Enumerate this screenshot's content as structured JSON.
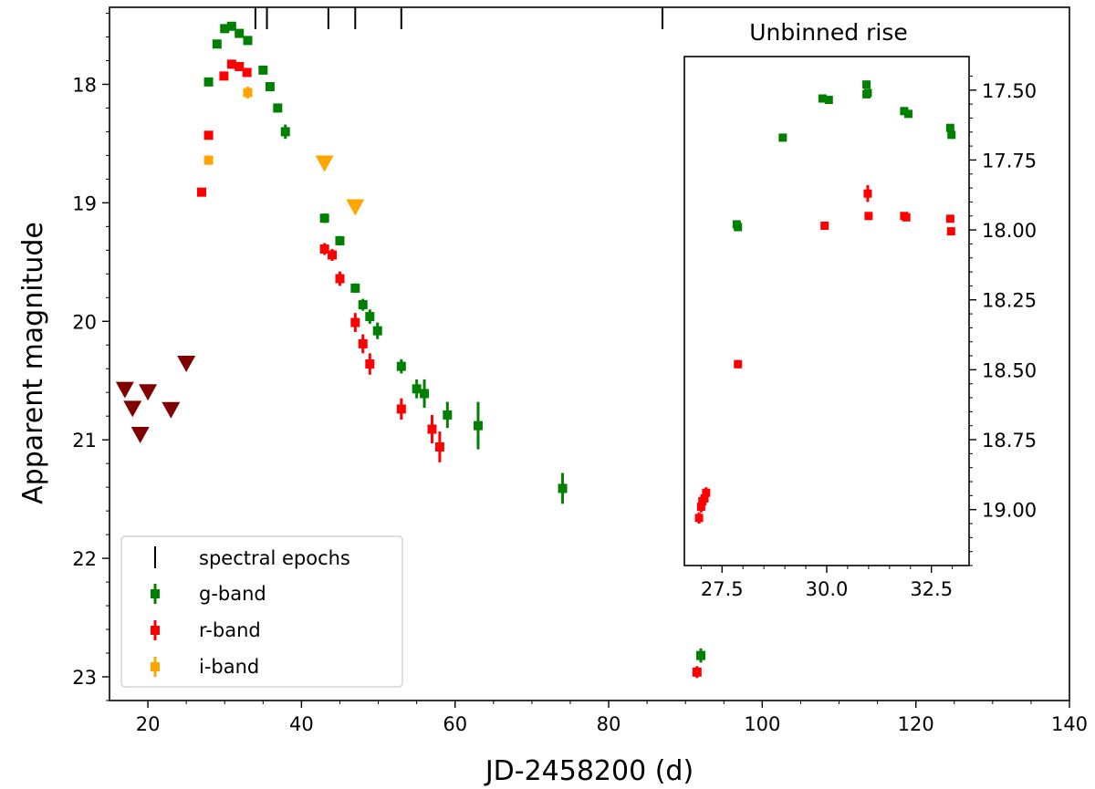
{
  "chart_data": [
    {
      "type": "scatter",
      "title": "",
      "xlabel": "JD-2458200 (d)",
      "ylabel": "Apparent magnitude",
      "xlim": [
        15,
        140
      ],
      "ylim": [
        23.2,
        17.35
      ],
      "x_inverted": false,
      "y_inverted": true,
      "x_ticks": [
        20,
        40,
        60,
        80,
        100,
        120,
        140
      ],
      "x_tick_labels": [
        "20",
        "40",
        "60",
        "80",
        "100",
        "120",
        "140"
      ],
      "y_ticks": [
        18,
        19,
        20,
        21,
        22,
        23
      ],
      "y_tick_labels": [
        "18",
        "19",
        "20",
        "21",
        "22",
        "23"
      ],
      "legend_position": "bottom-left",
      "spectral_epochs": {
        "name": "spectral epochs",
        "color": "#000000",
        "x": [
          34,
          35.5,
          43.5,
          47,
          53,
          87
        ]
      },
      "series": [
        {
          "name": "g-band",
          "color": "#008000",
          "marker": "square",
          "points": [
            {
              "x": 27.9,
              "y": 17.98,
              "err": 0.02
            },
            {
              "x": 29.0,
              "y": 17.66,
              "err": 0.02
            },
            {
              "x": 30.0,
              "y": 17.53,
              "err": 0.02
            },
            {
              "x": 30.9,
              "y": 17.51,
              "err": 0.02
            },
            {
              "x": 31.9,
              "y": 17.57,
              "err": 0.02
            },
            {
              "x": 33.0,
              "y": 17.63,
              "err": 0.02
            },
            {
              "x": 35.0,
              "y": 17.88,
              "err": 0.02
            },
            {
              "x": 35.9,
              "y": 18.02,
              "err": 0.02
            },
            {
              "x": 36.9,
              "y": 18.2,
              "err": 0.03
            },
            {
              "x": 37.9,
              "y": 18.4,
              "err": 0.06
            },
            {
              "x": 43.0,
              "y": 19.13,
              "err": 0.04
            },
            {
              "x": 45.0,
              "y": 19.32,
              "err": 0.04
            },
            {
              "x": 47.0,
              "y": 19.72,
              "err": 0.04
            },
            {
              "x": 48.0,
              "y": 19.86,
              "err": 0.05
            },
            {
              "x": 48.9,
              "y": 19.96,
              "err": 0.06
            },
            {
              "x": 49.9,
              "y": 20.08,
              "err": 0.07
            },
            {
              "x": 53.0,
              "y": 20.38,
              "err": 0.06
            },
            {
              "x": 55.0,
              "y": 20.57,
              "err": 0.08
            },
            {
              "x": 56.0,
              "y": 20.61,
              "err": 0.12
            },
            {
              "x": 59.0,
              "y": 20.79,
              "err": 0.11
            },
            {
              "x": 63.0,
              "y": 20.88,
              "err": 0.2
            },
            {
              "x": 74.0,
              "y": 21.41,
              "err": 0.13
            },
            {
              "x": 92.0,
              "y": 22.82,
              "err": 0.06
            }
          ]
        },
        {
          "name": "r-band",
          "color": "#ff0000",
          "marker": "square",
          "points": [
            {
              "x": 27.0,
              "y": 18.91,
              "err": 0.02
            },
            {
              "x": 27.9,
              "y": 18.43,
              "err": 0.02
            },
            {
              "x": 29.9,
              "y": 17.93,
              "err": 0.02
            },
            {
              "x": 30.9,
              "y": 17.83,
              "err": 0.02
            },
            {
              "x": 31.9,
              "y": 17.85,
              "err": 0.02
            },
            {
              "x": 32.9,
              "y": 17.9,
              "err": 0.02
            },
            {
              "x": 43.0,
              "y": 19.39,
              "err": 0.05
            },
            {
              "x": 44.0,
              "y": 19.44,
              "err": 0.05
            },
            {
              "x": 45.0,
              "y": 19.64,
              "err": 0.06
            },
            {
              "x": 47.0,
              "y": 20.01,
              "err": 0.08
            },
            {
              "x": 48.0,
              "y": 20.19,
              "err": 0.08
            },
            {
              "x": 48.9,
              "y": 20.36,
              "err": 0.09
            },
            {
              "x": 53.0,
              "y": 20.74,
              "err": 0.09
            },
            {
              "x": 57.0,
              "y": 20.91,
              "err": 0.12
            },
            {
              "x": 58.0,
              "y": 21.06,
              "err": 0.13
            },
            {
              "x": 91.5,
              "y": 22.96,
              "err": 0.05
            }
          ]
        },
        {
          "name": "i-band",
          "color": "#ffa500",
          "marker": "square",
          "points": [
            {
              "x": 27.9,
              "y": 18.64,
              "err": 0.04
            },
            {
              "x": 33.0,
              "y": 18.07,
              "err": 0.05
            }
          ]
        },
        {
          "name": "i-band upper limits",
          "color": "#ffa500",
          "marker": "triangle-down",
          "in_legend": false,
          "points": [
            {
              "x": 43.0,
              "y": 18.67
            },
            {
              "x": 47.0,
              "y": 19.04
            }
          ]
        },
        {
          "name": "pre-explosion upper limits",
          "color": "#800000",
          "marker": "triangle-down",
          "in_legend": false,
          "points": [
            {
              "x": 17.0,
              "y": 20.58
            },
            {
              "x": 18.0,
              "y": 20.74
            },
            {
              "x": 19.0,
              "y": 20.96
            },
            {
              "x": 20.0,
              "y": 20.6
            },
            {
              "x": 23.0,
              "y": 20.75
            },
            {
              "x": 25.0,
              "y": 20.36
            }
          ]
        }
      ]
    },
    {
      "type": "scatter",
      "title": "Unbinned rise",
      "xlabel": "",
      "ylabel": "",
      "xlim": [
        26.6,
        33.4
      ],
      "ylim": [
        19.2,
        17.38
      ],
      "y_inverted": true,
      "y_axis_side": "right",
      "x_ticks": [
        27.5,
        30.0,
        32.5
      ],
      "x_tick_labels": [
        "27.5",
        "30.0",
        "32.5"
      ],
      "y_ticks": [
        17.5,
        17.75,
        18.0,
        18.25,
        18.5,
        18.75,
        19.0
      ],
      "y_tick_labels": [
        "17.50",
        "17.75",
        "18.00",
        "18.25",
        "18.50",
        "18.75",
        "19.00"
      ],
      "series": [
        {
          "name": "g-band",
          "color": "#008000",
          "marker": "square",
          "points": [
            {
              "x": 27.85,
              "y": 17.98,
              "err": 0.01
            },
            {
              "x": 27.88,
              "y": 17.99,
              "err": 0.01
            },
            {
              "x": 28.95,
              "y": 17.67,
              "err": 0.01
            },
            {
              "x": 29.9,
              "y": 17.53,
              "err": 0.01
            },
            {
              "x": 30.05,
              "y": 17.535,
              "err": 0.01
            },
            {
              "x": 30.95,
              "y": 17.48,
              "err": 0.01
            },
            {
              "x": 30.95,
              "y": 17.515,
              "err": 0.01
            },
            {
              "x": 30.98,
              "y": 17.51,
              "err": 0.01
            },
            {
              "x": 31.85,
              "y": 17.575,
              "err": 0.01
            },
            {
              "x": 31.95,
              "y": 17.585,
              "err": 0.01
            },
            {
              "x": 32.95,
              "y": 17.635,
              "err": 0.01
            },
            {
              "x": 32.98,
              "y": 17.66,
              "err": 0.01
            }
          ]
        },
        {
          "name": "r-band",
          "color": "#ff0000",
          "marker": "square",
          "points": [
            {
              "x": 26.95,
              "y": 19.03,
              "err": 0.02
            },
            {
              "x": 27.0,
              "y": 18.99,
              "err": 0.02
            },
            {
              "x": 27.03,
              "y": 18.97,
              "err": 0.02
            },
            {
              "x": 27.08,
              "y": 18.96,
              "err": 0.02
            },
            {
              "x": 27.12,
              "y": 18.94,
              "err": 0.02
            },
            {
              "x": 27.88,
              "y": 18.48,
              "err": 0.015
            },
            {
              "x": 29.95,
              "y": 17.985,
              "err": 0.01
            },
            {
              "x": 30.98,
              "y": 17.87,
              "err": 0.03
            },
            {
              "x": 31.0,
              "y": 17.95,
              "err": 0.01
            },
            {
              "x": 31.85,
              "y": 17.95,
              "err": 0.01
            },
            {
              "x": 31.9,
              "y": 17.955,
              "err": 0.01
            },
            {
              "x": 32.95,
              "y": 17.96,
              "err": 0.01
            },
            {
              "x": 32.97,
              "y": 18.005,
              "err": 0.01
            }
          ]
        }
      ]
    }
  ]
}
